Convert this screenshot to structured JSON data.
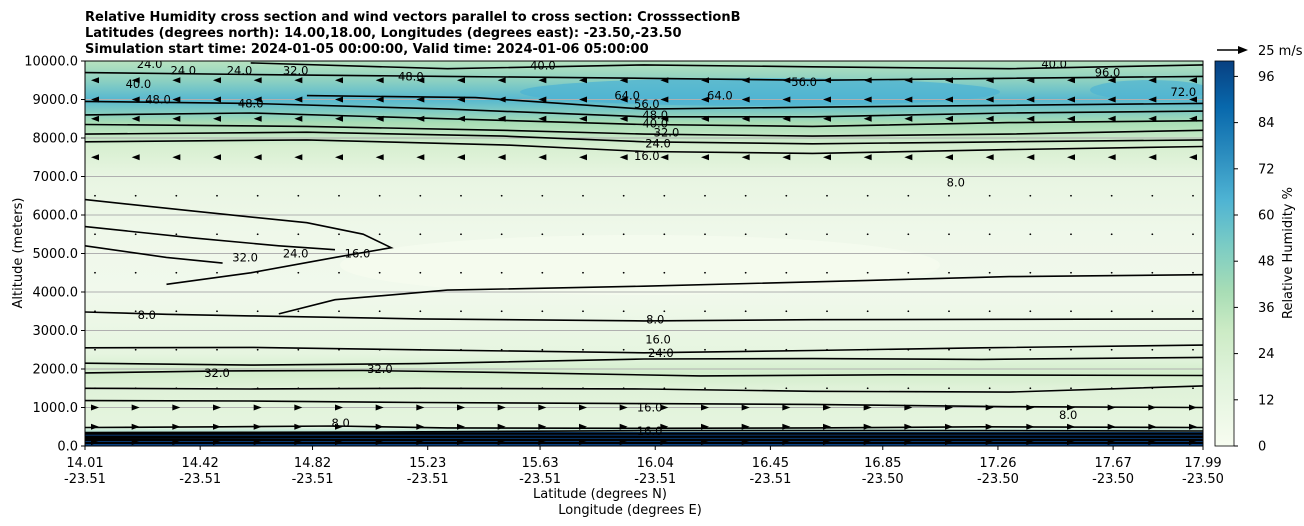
{
  "chart_data": {
    "type": "contour",
    "title_lines": [
      "Relative Humidity cross section and wind vectors parallel to cross section: CrosssectionB",
      "Latitudes (degrees north): 14.00,18.00, Longitudes (degrees east): -23.50,-23.50",
      "Simulation start time: 2024-01-05 00:00:00, Valid time: 2024-01-06 05:00:00"
    ],
    "ylabel": "Altitude (meters)",
    "xlabel_lat": "Latitude (degrees N)",
    "xlabel_lon": "Longitude (degrees E)",
    "ylim": [
      0,
      10000
    ],
    "y_ticks": [
      "0.0",
      "1000.0",
      "2000.0",
      "3000.0",
      "4000.0",
      "5000.0",
      "6000.0",
      "7000.0",
      "8000.0",
      "9000.0",
      "10000.0"
    ],
    "x_range": [
      14.01,
      17.99
    ],
    "x_ticks": [
      {
        "lat": "14.01",
        "lon": "-23.51"
      },
      {
        "lat": "14.42",
        "lon": "-23.51"
      },
      {
        "lat": "14.82",
        "lon": "-23.51"
      },
      {
        "lat": "15.23",
        "lon": "-23.51"
      },
      {
        "lat": "15.63",
        "lon": "-23.51"
      },
      {
        "lat": "16.04",
        "lon": "-23.51"
      },
      {
        "lat": "16.45",
        "lon": "-23.51"
      },
      {
        "lat": "16.85",
        "lon": "-23.50"
      },
      {
        "lat": "17.26",
        "lon": "-23.50"
      },
      {
        "lat": "17.67",
        "lon": "-23.50"
      },
      {
        "lat": "17.99",
        "lon": "-23.50"
      }
    ],
    "colorbar": {
      "label": "Relative Humidity %",
      "ticks": [
        "0",
        "12",
        "24",
        "36",
        "48",
        "60",
        "72",
        "84",
        "96"
      ],
      "min": 0,
      "max": 100,
      "colors": [
        "#f7fcf0",
        "#ccebc5",
        "#a8ddb5",
        "#7bccc4",
        "#4eb3d3",
        "#2b8cbe",
        "#0868ac",
        "#084081"
      ]
    },
    "quiver_key": "25 m/s",
    "wind_levels": [
      {
        "z": 9500,
        "dir": "left"
      },
      {
        "z": 9000,
        "dir": "left"
      },
      {
        "z": 8500,
        "dir": "left"
      },
      {
        "z": 7500,
        "dir": "left"
      },
      {
        "z": 6500,
        "dir": "dot"
      },
      {
        "z": 5500,
        "dir": "dot"
      },
      {
        "z": 4500,
        "dir": "dot"
      },
      {
        "z": 3500,
        "dir": "dot"
      },
      {
        "z": 2500,
        "dir": "dot"
      },
      {
        "z": 1500,
        "dir": "dot"
      },
      {
        "z": 1000,
        "dir": "right"
      },
      {
        "z": 500,
        "dir": "right"
      },
      {
        "z": 100,
        "dir": "right"
      }
    ],
    "contours": [
      {
        "level": "8.0",
        "points": [
          [
            14.01,
            3480
          ],
          [
            14.3,
            3420
          ],
          [
            14.6,
            3380
          ],
          [
            15.2,
            3300
          ],
          [
            16.0,
            3250
          ],
          [
            16.6,
            3280
          ],
          [
            17.3,
            3290
          ],
          [
            17.99,
            3300
          ]
        ]
      },
      {
        "level": "8.0",
        "points": [
          [
            14.7,
            3430
          ],
          [
            14.9,
            3800
          ],
          [
            15.3,
            4050
          ],
          [
            16.0,
            4150
          ],
          [
            16.8,
            4300
          ],
          [
            17.3,
            4400
          ],
          [
            17.99,
            4450
          ]
        ]
      },
      {
        "level": "16.0",
        "points": [
          [
            14.01,
            2550
          ],
          [
            14.6,
            2560
          ],
          [
            15.2,
            2500
          ],
          [
            16.0,
            2420
          ],
          [
            16.6,
            2480
          ],
          [
            17.2,
            2550
          ],
          [
            17.99,
            2620
          ]
        ]
      },
      {
        "level": "24.0",
        "points": [
          [
            14.01,
            2150
          ],
          [
            14.6,
            2100
          ],
          [
            15.2,
            2140
          ],
          [
            16.0,
            2260
          ],
          [
            16.6,
            2270
          ],
          [
            17.2,
            2250
          ],
          [
            17.99,
            2300
          ]
        ]
      },
      {
        "level": "32.0",
        "points": [
          [
            14.01,
            1900
          ],
          [
            14.5,
            1950
          ],
          [
            15.0,
            1960
          ],
          [
            15.6,
            1900
          ],
          [
            16.2,
            1820
          ],
          [
            16.9,
            1850
          ],
          [
            17.99,
            1830
          ]
        ]
      },
      {
        "level": "24.0",
        "points": [
          [
            14.01,
            1500
          ],
          [
            14.6,
            1480
          ],
          [
            15.2,
            1500
          ],
          [
            16.0,
            1480
          ],
          [
            16.6,
            1420
          ],
          [
            17.3,
            1400
          ],
          [
            17.99,
            1560
          ]
        ]
      },
      {
        "level": "16.0",
        "points": [
          [
            14.01,
            1180
          ],
          [
            14.6,
            1170
          ],
          [
            15.2,
            1130
          ],
          [
            16.0,
            1100
          ],
          [
            16.6,
            1080
          ],
          [
            17.3,
            1020
          ],
          [
            17.99,
            1000
          ]
        ]
      },
      {
        "level": "8.0",
        "points": [
          [
            14.01,
            480
          ],
          [
            14.5,
            500
          ],
          [
            14.9,
            520
          ],
          [
            15.3,
            470
          ],
          [
            16.0,
            460
          ],
          [
            16.6,
            470
          ],
          [
            17.2,
            500
          ],
          [
            17.99,
            480
          ]
        ]
      },
      {
        "level": "16.0",
        "points": [
          [
            14.01,
            350
          ],
          [
            15.0,
            360
          ],
          [
            16.0,
            400
          ],
          [
            17.0,
            400
          ],
          [
            17.99,
            390
          ]
        ]
      },
      {
        "level": "48.0",
        "points": [
          [
            14.01,
            200
          ],
          [
            15.0,
            230
          ],
          [
            16.0,
            240
          ],
          [
            17.0,
            250
          ],
          [
            17.99,
            230
          ]
        ]
      },
      {
        "level": "16.0",
        "points": [
          [
            14.01,
            7900
          ],
          [
            14.8,
            7950
          ],
          [
            15.5,
            7820
          ],
          [
            16.0,
            7650
          ],
          [
            16.6,
            7600
          ],
          [
            17.3,
            7700
          ],
          [
            17.99,
            7780
          ]
        ]
      },
      {
        "level": "24.0",
        "points": [
          [
            14.01,
            8100
          ],
          [
            14.8,
            8150
          ],
          [
            15.5,
            8050
          ],
          [
            16.0,
            7900
          ],
          [
            16.6,
            7850
          ],
          [
            17.3,
            7900
          ],
          [
            17.99,
            7950
          ]
        ]
      },
      {
        "level": "32.0",
        "points": [
          [
            14.01,
            8350
          ],
          [
            14.8,
            8300
          ],
          [
            15.5,
            8200
          ],
          [
            16.0,
            8100
          ],
          [
            16.6,
            8050
          ],
          [
            17.3,
            8100
          ],
          [
            17.99,
            8200
          ]
        ]
      },
      {
        "level": "40.0",
        "points": [
          [
            14.01,
            8600
          ],
          [
            14.6,
            8650
          ],
          [
            15.3,
            8500
          ],
          [
            16.0,
            8350
          ],
          [
            16.6,
            8300
          ],
          [
            17.3,
            8400
          ],
          [
            17.99,
            8450
          ]
        ]
      },
      {
        "level": "48.0",
        "points": [
          [
            14.01,
            8950
          ],
          [
            14.6,
            8900
          ],
          [
            15.3,
            8750
          ],
          [
            16.0,
            8550
          ],
          [
            16.6,
            8550
          ],
          [
            17.3,
            8650
          ],
          [
            17.99,
            8700
          ]
        ]
      },
      {
        "level": "56.0",
        "points": [
          [
            14.8,
            9100
          ],
          [
            15.4,
            9050
          ],
          [
            16.0,
            8750
          ],
          [
            16.6,
            8800
          ],
          [
            17.3,
            8850
          ],
          [
            17.99,
            8900
          ]
        ]
      },
      {
        "level": "48.0",
        "points": [
          [
            14.01,
            9700
          ],
          [
            14.6,
            9650
          ],
          [
            15.3,
            9600
          ],
          [
            16.0,
            9550
          ],
          [
            16.6,
            9500
          ],
          [
            17.3,
            9550
          ],
          [
            17.99,
            9600
          ]
        ]
      },
      {
        "level": "40.0",
        "points": [
          [
            14.6,
            9950
          ],
          [
            15.3,
            9800
          ],
          [
            16.0,
            9900
          ],
          [
            16.6,
            9850
          ],
          [
            17.3,
            9800
          ],
          [
            17.99,
            9900
          ]
        ]
      },
      {
        "level": "32.0",
        "points": [
          [
            14.01,
            5200
          ],
          [
            14.3,
            4900
          ],
          [
            14.5,
            4750
          ]
        ]
      },
      {
        "level": "24.0",
        "points": [
          [
            14.01,
            5700
          ],
          [
            14.4,
            5400
          ],
          [
            14.7,
            5200
          ],
          [
            14.9,
            5100
          ]
        ]
      },
      {
        "level": "16.0",
        "points": [
          [
            14.01,
            6400
          ],
          [
            14.4,
            6100
          ],
          [
            14.8,
            5800
          ],
          [
            15.0,
            5500
          ],
          [
            15.1,
            5150
          ],
          [
            14.9,
            4900
          ],
          [
            14.6,
            4500
          ],
          [
            14.3,
            4200
          ]
        ]
      }
    ],
    "contour_labels": [
      {
        "text": "8.0",
        "lat": 16.04,
        "z": 3280
      },
      {
        "text": "16.0",
        "lat": 16.05,
        "z": 2760
      },
      {
        "text": "24.0",
        "lat": 16.06,
        "z": 2420
      },
      {
        "text": "32.0",
        "lat": 14.48,
        "z": 1900
      },
      {
        "text": "32.0",
        "lat": 15.06,
        "z": 2000
      },
      {
        "text": "16.0",
        "lat": 16.02,
        "z": 1000
      },
      {
        "text": "8.0",
        "lat": 14.92,
        "z": 600
      },
      {
        "text": "16.0",
        "lat": 16.02,
        "z": 390
      },
      {
        "text": "8.0",
        "lat": 17.51,
        "z": 800
      },
      {
        "text": "8.0",
        "lat": 17.11,
        "z": 6850
      },
      {
        "text": "16.0",
        "lat": 16.01,
        "z": 7530
      },
      {
        "text": "24.0",
        "lat": 16.05,
        "z": 7860
      },
      {
        "text": "32.0",
        "lat": 16.08,
        "z": 8140
      },
      {
        "text": "40.0",
        "lat": 16.04,
        "z": 8380
      },
      {
        "text": "48.0",
        "lat": 16.04,
        "z": 8600
      },
      {
        "text": "56.0",
        "lat": 16.01,
        "z": 8880
      },
      {
        "text": "64.0",
        "lat": 16.27,
        "z": 9100
      },
      {
        "text": "64.0",
        "lat": 15.94,
        "z": 9100
      },
      {
        "text": "56.0",
        "lat": 16.57,
        "z": 9450
      },
      {
        "text": "48.0",
        "lat": 15.17,
        "z": 9600
      },
      {
        "text": "40.0",
        "lat": 15.64,
        "z": 9880
      },
      {
        "text": "40.0",
        "lat": 17.46,
        "z": 9920
      },
      {
        "text": "24.0",
        "lat": 14.24,
        "z": 9920
      },
      {
        "text": "24.0",
        "lat": 14.36,
        "z": 9750
      },
      {
        "text": "48.0",
        "lat": 14.27,
        "z": 9000
      },
      {
        "text": "40.0",
        "lat": 14.2,
        "z": 9400
      },
      {
        "text": "48.0",
        "lat": 14.6,
        "z": 8900
      },
      {
        "text": "24.0",
        "lat": 14.56,
        "z": 9750
      },
      {
        "text": "32.0",
        "lat": 14.76,
        "z": 9750
      },
      {
        "text": "32.0",
        "lat": 14.58,
        "z": 4900
      },
      {
        "text": "24.0",
        "lat": 14.76,
        "z": 5000
      },
      {
        "text": "16.0",
        "lat": 14.98,
        "z": 5000
      },
      {
        "text": "8.0",
        "lat": 14.23,
        "z": 3400
      },
      {
        "text": "72.0",
        "lat": 17.92,
        "z": 9200
      },
      {
        "text": "96.0",
        "lat": 17.65,
        "z": 9700
      }
    ]
  }
}
